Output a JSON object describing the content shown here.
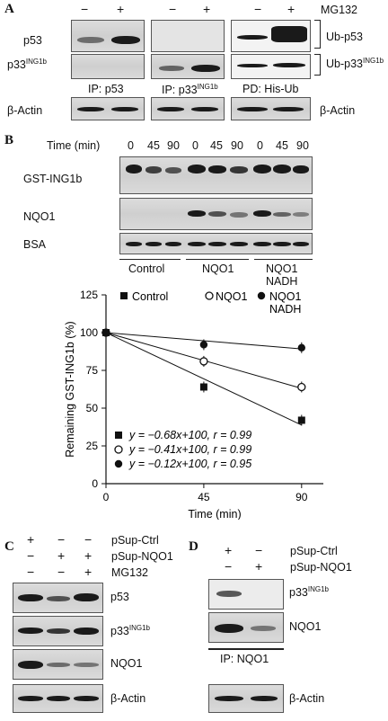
{
  "panelA": {
    "letter": "A",
    "treatment_label": "MG132",
    "signs": [
      "−",
      "+",
      "−",
      "+",
      "−",
      "+"
    ],
    "row_labels": [
      "p53",
      "p33",
      "ING1b",
      "β-Actin"
    ],
    "ub_labels": [
      "Ub-p53",
      "Ub-p33",
      "ING1b"
    ],
    "ip_labels": [
      "IP: p53",
      "IP: p33",
      "ING1b",
      "PD: His-Ub"
    ],
    "right_actin": "β-Actin"
  },
  "panelB": {
    "letter": "B",
    "time_label": "Time (min)",
    "time_ticks": [
      "0",
      "45",
      "90",
      "0",
      "45",
      "90",
      "0",
      "45",
      "90"
    ],
    "row_labels": [
      "GST-ING1b",
      "NQO1",
      "BSA"
    ],
    "group_labels": [
      "Control",
      "NQO1",
      "NQO1",
      "NADH"
    ]
  },
  "chart_data": {
    "type": "scatter",
    "xlabel": "Time (min)",
    "ylabel": "Remaining GST-ING1b (%)",
    "xlim": [
      0,
      100
    ],
    "ylim": [
      0,
      125
    ],
    "x_ticks": [
      "0",
      "45",
      "90"
    ],
    "y_ticks": [
      "0",
      "25",
      "50",
      "75",
      "100",
      "125"
    ],
    "series": [
      {
        "name": "Control",
        "marker": "filled-square",
        "x": [
          0,
          45,
          90
        ],
        "y": [
          100,
          64,
          42
        ],
        "fit": "y = −0.68x+100, r = 0.99",
        "slope": -0.68
      },
      {
        "name": "NQO1",
        "marker": "open-circle",
        "x": [
          0,
          45,
          90
        ],
        "y": [
          100,
          81,
          64
        ],
        "fit": "y = −0.41x+100, r = 0.99",
        "slope": -0.41
      },
      {
        "name": "NQO1 NADH",
        "marker": "filled-circle",
        "x": [
          0,
          45,
          90
        ],
        "y": [
          100,
          92,
          90
        ],
        "fit": "y = −0.12x+100, r = 0.95",
        "slope": -0.12
      }
    ],
    "legend_lines": [
      "Control",
      "NQO1",
      "NQO1",
      "NADH"
    ]
  },
  "panelC": {
    "letter": "C",
    "conditions": [
      "pSup-Ctrl",
      "pSup-NQO1",
      "MG132"
    ],
    "signs": [
      [
        "+",
        "−",
        "−"
      ],
      [
        "−",
        "+",
        "+"
      ],
      [
        "−",
        "−",
        "+"
      ]
    ],
    "row_labels": [
      "p53",
      "p33",
      "ING1b",
      "NQO1",
      "β-Actin"
    ]
  },
  "panelD": {
    "letter": "D",
    "conditions": [
      "pSup-Ctrl",
      "pSup-NQO1"
    ],
    "signs": [
      [
        "+",
        "−"
      ],
      [
        "−",
        "+"
      ]
    ],
    "row_labels": [
      "p33",
      "ING1b",
      "NQO1",
      "β-Actin"
    ],
    "ip_label": "IP: NQO1"
  }
}
